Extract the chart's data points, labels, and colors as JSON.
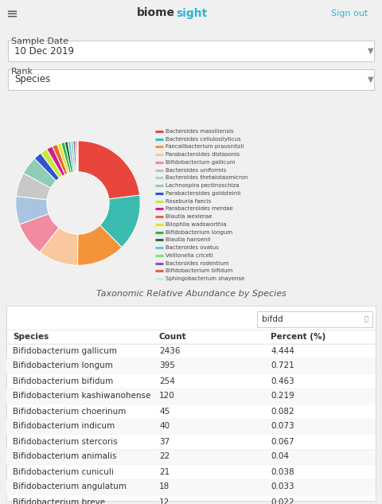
{
  "title": "Taxonomic Relative Abundance by Species",
  "species": [
    "Bacteroides massiliensis",
    "Bacteroides cellulosilyticus",
    "Faecalibacterium prausnitzii",
    "Parabacteroides distasonis",
    "Bifidobacterium gallicum",
    "Bacteroides uniformis",
    "Bacteroides thetaiotaomicron",
    "Lachnospira pectinoschiza",
    "Parabacteroides goldsteinii",
    "Roseburia faecis",
    "Parabacteroides merdae",
    "Blautia wexlerae",
    "Bilophila wadsworthia",
    "Bifidobacterium longum",
    "Blautia hansenii",
    "Bacteroides ovatus",
    "Veillonella criceti",
    "Bacteroides rodentium",
    "Bifidobacterium bifidum",
    "Sphingobacterium shayense"
  ],
  "colors": [
    "#e8453c",
    "#3cbcb0",
    "#f4943a",
    "#f9c89e",
    "#f08ba0",
    "#a8c4e0",
    "#c8c8c8",
    "#8ecdb8",
    "#3355cc",
    "#c8e840",
    "#cc2288",
    "#e86830",
    "#e8e030",
    "#22bb44",
    "#336644",
    "#60c8d8",
    "#88dd88",
    "#8855bb",
    "#e86030",
    "#c8e8f4"
  ],
  "values": [
    22.0,
    14.0,
    12.0,
    10.0,
    8.5,
    7.0,
    6.0,
    4.5,
    2.0,
    1.8,
    1.5,
    1.3,
    1.0,
    0.9,
    0.8,
    0.7,
    0.6,
    0.5,
    0.4,
    0.3
  ],
  "search_text": "bifdd",
  "columns": [
    "Species",
    "Count",
    "Percent (%)"
  ],
  "rows": [
    [
      "Bifidobacterium gallicum",
      "2436",
      "4.444"
    ],
    [
      "Bifidobacterium longum",
      "395",
      "0.721"
    ],
    [
      "Bifidobacterium bifidum",
      "254",
      "0.463"
    ],
    [
      "Bifidobacterium kashiwanohense",
      "120",
      "0.219"
    ],
    [
      "Bifidobacterium choerinum",
      "45",
      "0.082"
    ],
    [
      "Bifidobacterium indicum",
      "40",
      "0.073"
    ],
    [
      "Bifidobacterium stercoris",
      "37",
      "0.067"
    ],
    [
      "Bifidobacterium animalis",
      "22",
      "0.04"
    ],
    [
      "Bifidobacterium cuniculi",
      "21",
      "0.038"
    ],
    [
      "Bifidobacterium angulatum",
      "18",
      "0.033"
    ],
    [
      "Bifidobacterium breve",
      "12",
      "0.022"
    ]
  ],
  "nav_blue": "#29b6d6",
  "nav_dark": "#333333",
  "page_bg": "#f0f0f0",
  "white": "#ffffff",
  "border_color": "#dddddd",
  "text_dark": "#333333",
  "text_gray": "#666666"
}
